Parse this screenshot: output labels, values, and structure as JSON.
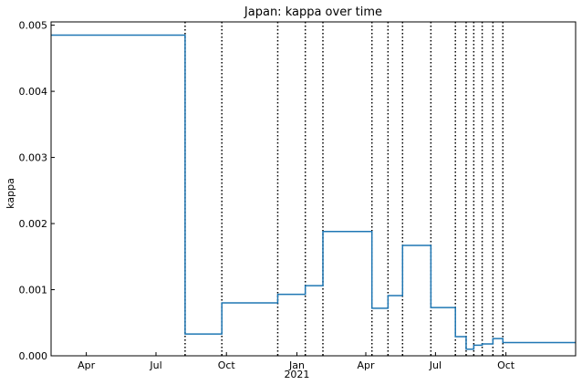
{
  "chart_data": {
    "type": "line",
    "title": "Japan: kappa over time",
    "xlabel": "",
    "ylabel": "kappa",
    "xlim": [
      "2020-02-15",
      "2021-12-31"
    ],
    "ylim": [
      0,
      0.00505
    ],
    "grid": false,
    "legend": "none",
    "colors": {
      "series": "#1f77b4",
      "vlines": "#000000"
    },
    "x_ticks": [
      {
        "date": "2020-04-01",
        "label": "Apr"
      },
      {
        "date": "2020-07-01",
        "label": "Jul"
      },
      {
        "date": "2020-10-01",
        "label": "Oct"
      },
      {
        "date": "2021-01-01",
        "label": "Jan"
      },
      {
        "date": "2021-04-01",
        "label": "Apr"
      },
      {
        "date": "2021-07-01",
        "label": "Jul"
      },
      {
        "date": "2021-10-01",
        "label": "Oct"
      }
    ],
    "x_year_label": {
      "date": "2021-01-01",
      "label": "2021"
    },
    "y_ticks": [
      {
        "value": 0,
        "label": "0.000"
      },
      {
        "value": 0.001,
        "label": "0.001"
      },
      {
        "value": 0.002,
        "label": "0.002"
      },
      {
        "value": 0.003,
        "label": "0.003"
      },
      {
        "value": 0.004,
        "label": "0.004"
      },
      {
        "value": 0.005,
        "label": "0.005"
      }
    ],
    "breakpoints": [
      "2020-08-08",
      "2020-09-25",
      "2020-12-07",
      "2021-01-12",
      "2021-02-04",
      "2021-04-09",
      "2021-04-30",
      "2021-05-19",
      "2021-06-25",
      "2021-07-27",
      "2021-08-10",
      "2021-08-20",
      "2021-08-31",
      "2021-09-14",
      "2021-09-27"
    ],
    "series": [
      {
        "type": "step",
        "x": [
          "2020-02-15",
          "2020-08-08",
          "2020-09-25",
          "2020-12-07",
          "2021-01-12",
          "2021-02-04",
          "2021-04-09",
          "2021-04-30",
          "2021-05-19",
          "2021-06-25",
          "2021-07-27",
          "2021-08-10",
          "2021-08-20",
          "2021-08-31",
          "2021-09-14",
          "2021-09-27",
          "2021-12-31"
        ],
        "y": [
          0.00485,
          0.00033,
          0.0008,
          0.00093,
          0.00106,
          0.00188,
          0.00072,
          0.00091,
          0.00167,
          0.00073,
          0.00029,
          0.0001,
          0.00016,
          0.00018,
          0.00026,
          0.0002,
          0.0002
        ]
      }
    ]
  }
}
